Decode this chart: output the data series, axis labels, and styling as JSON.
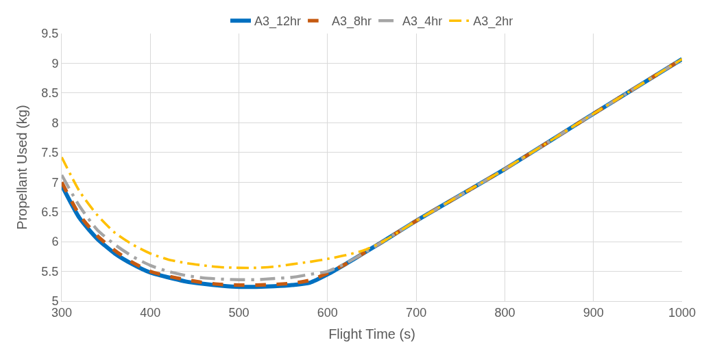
{
  "chart_data": {
    "type": "line",
    "xlabel": "Flight Time (s)",
    "ylabel": "Propellant Used (kg)",
    "xlim": [
      300,
      1000
    ],
    "ylim": [
      5,
      9.5
    ],
    "xticks": [
      300,
      400,
      500,
      600,
      700,
      800,
      900,
      1000
    ],
    "yticks": [
      5,
      {
        "value": 5.5,
        "label": "5.5"
      },
      6,
      {
        "value": 6.5,
        "label": "6.5"
      },
      7,
      {
        "value": 7.5,
        "label": "7.5"
      },
      8,
      {
        "value": 8.5,
        "label": "8.5"
      },
      9,
      {
        "value": 9.5,
        "label": "9.5"
      }
    ],
    "grid": true,
    "legend": "top",
    "marker": "none",
    "x": [
      300,
      320,
      340,
      360,
      380,
      400,
      420,
      440,
      460,
      480,
      500,
      520,
      540,
      560,
      580,
      600,
      620,
      640,
      660,
      700,
      800,
      900,
      1000
    ],
    "series": [
      {
        "name": "A3_12hr",
        "color": "#0070c0",
        "line_style": "solid",
        "values": [
          6.95,
          6.4,
          6.05,
          5.8,
          5.62,
          5.48,
          5.4,
          5.33,
          5.29,
          5.26,
          5.24,
          5.24,
          5.25,
          5.27,
          5.31,
          5.45,
          5.62,
          5.8,
          5.98,
          6.35,
          7.22,
          8.15,
          9.07
        ]
      },
      {
        "name": "A3_8hr",
        "color": "#c55a11",
        "line_style": "dashed",
        "values": [
          7.0,
          6.45,
          6.1,
          5.85,
          5.65,
          5.5,
          5.42,
          5.36,
          5.31,
          5.28,
          5.27,
          5.27,
          5.28,
          5.3,
          5.35,
          5.47,
          5.62,
          5.8,
          5.98,
          6.35,
          7.22,
          8.15,
          9.07
        ]
      },
      {
        "name": "A3_4hr",
        "color": "#a5a5a5",
        "line_style": "dashdot",
        "values": [
          7.12,
          6.6,
          6.2,
          5.95,
          5.75,
          5.6,
          5.5,
          5.43,
          5.39,
          5.37,
          5.36,
          5.36,
          5.38,
          5.4,
          5.45,
          5.5,
          5.63,
          5.8,
          5.98,
          6.35,
          7.22,
          8.15,
          9.07
        ]
      },
      {
        "name": "A3_2hr",
        "color": "#ffc000",
        "line_style": "dashdot",
        "values": [
          7.42,
          6.85,
          6.45,
          6.15,
          5.95,
          5.8,
          5.7,
          5.64,
          5.6,
          5.57,
          5.56,
          5.56,
          5.58,
          5.62,
          5.66,
          5.71,
          5.77,
          5.85,
          5.98,
          6.35,
          7.22,
          8.15,
          9.07
        ]
      }
    ]
  }
}
